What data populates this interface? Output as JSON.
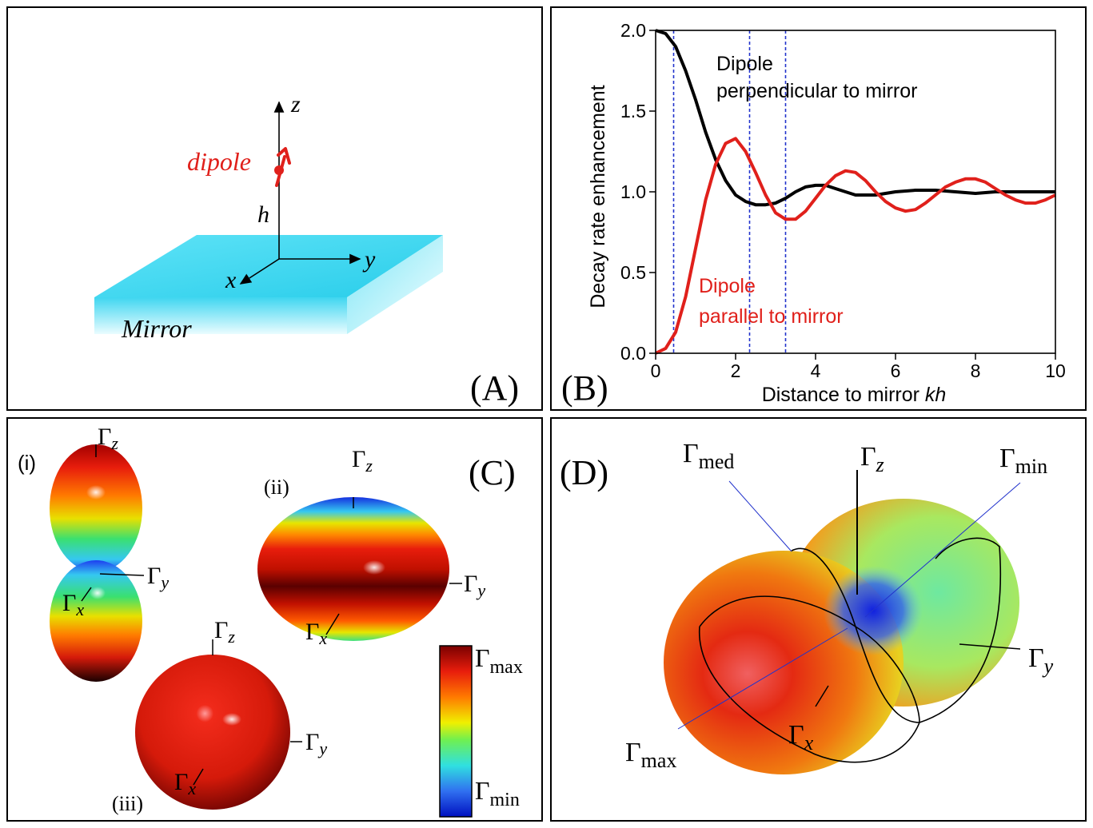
{
  "panel_a": {
    "label": "(A)",
    "axis_z": "z",
    "axis_y": "y",
    "axis_x": "x",
    "dipole_label": "dipole",
    "height_label": "h",
    "mirror_label": "Mirror",
    "colors": {
      "mirror": "#3fd6f0",
      "dipole": "#e0201b"
    }
  },
  "panel_b": {
    "label": "(B)",
    "colors": {
      "perpendicular": "#000000",
      "parallel": "#e0201b",
      "guides": "#2233cc"
    }
  },
  "chart_data": {
    "type": "line",
    "xlabel_main": "Distance to mirror ",
    "xlabel_italic": "kh",
    "ylabel": "Decay rate enhancement",
    "xlim": [
      0,
      10
    ],
    "ylim": [
      0,
      2.0
    ],
    "xticks": [
      "0",
      "2",
      "4",
      "6",
      "8",
      "10"
    ],
    "yticks": [
      "0.0",
      "0.5",
      "1.0",
      "1.5",
      "2.0"
    ],
    "vertical_guides": [
      0.45,
      2.35,
      3.25
    ],
    "series": [
      {
        "name_line1": "Dipole",
        "name_line2": "perpendicular to mirror",
        "color": "#000000",
        "x": [
          0,
          0.25,
          0.5,
          0.75,
          1.0,
          1.25,
          1.5,
          1.75,
          2.0,
          2.25,
          2.5,
          2.75,
          3.0,
          3.25,
          3.5,
          3.75,
          4.0,
          4.25,
          4.5,
          4.75,
          5.0,
          5.25,
          5.5,
          5.75,
          6.0,
          6.5,
          7.0,
          7.5,
          8.0,
          8.5,
          9.0,
          9.5,
          10.0
        ],
        "y": [
          2.0,
          1.98,
          1.9,
          1.75,
          1.57,
          1.37,
          1.2,
          1.07,
          0.98,
          0.94,
          0.92,
          0.92,
          0.93,
          0.96,
          1.0,
          1.03,
          1.04,
          1.04,
          1.02,
          1.0,
          0.98,
          0.98,
          0.98,
          0.99,
          1.0,
          1.01,
          1.01,
          1.0,
          0.99,
          1.0,
          1.0,
          1.0,
          1.0
        ]
      },
      {
        "name_line1": "Dipole",
        "name_line2": "parallel to mirror",
        "color": "#e0201b",
        "x": [
          0,
          0.25,
          0.5,
          0.75,
          1.0,
          1.25,
          1.5,
          1.75,
          2.0,
          2.25,
          2.5,
          2.75,
          3.0,
          3.25,
          3.5,
          3.75,
          4.0,
          4.25,
          4.5,
          4.75,
          5.0,
          5.25,
          5.5,
          5.75,
          6.0,
          6.25,
          6.5,
          6.75,
          7.0,
          7.25,
          7.5,
          7.75,
          8.0,
          8.25,
          8.5,
          8.75,
          9.0,
          9.25,
          9.5,
          9.75,
          10.0
        ],
        "y": [
          0.0,
          0.03,
          0.13,
          0.35,
          0.65,
          0.95,
          1.17,
          1.3,
          1.33,
          1.25,
          1.12,
          0.98,
          0.87,
          0.83,
          0.83,
          0.88,
          0.96,
          1.04,
          1.1,
          1.13,
          1.12,
          1.07,
          1.0,
          0.94,
          0.9,
          0.88,
          0.89,
          0.93,
          0.98,
          1.03,
          1.06,
          1.08,
          1.08,
          1.06,
          1.02,
          0.98,
          0.95,
          0.93,
          0.93,
          0.95,
          0.98
        ]
      }
    ]
  },
  "panel_c": {
    "label": "(C)",
    "sub_i": "(i)",
    "sub_ii": "(ii)",
    "sub_iii": "(iii)",
    "gamma": "Γ",
    "sub_z": "z",
    "sub_y": "y",
    "sub_x": "x",
    "colorbar_max": "max",
    "colorbar_min": "min"
  },
  "panel_d": {
    "label": "(D)",
    "gamma": "Γ",
    "sub_med": "med",
    "sub_z": "z",
    "sub_min": "min",
    "sub_y": "y",
    "sub_x": "x",
    "sub_max": "max"
  }
}
